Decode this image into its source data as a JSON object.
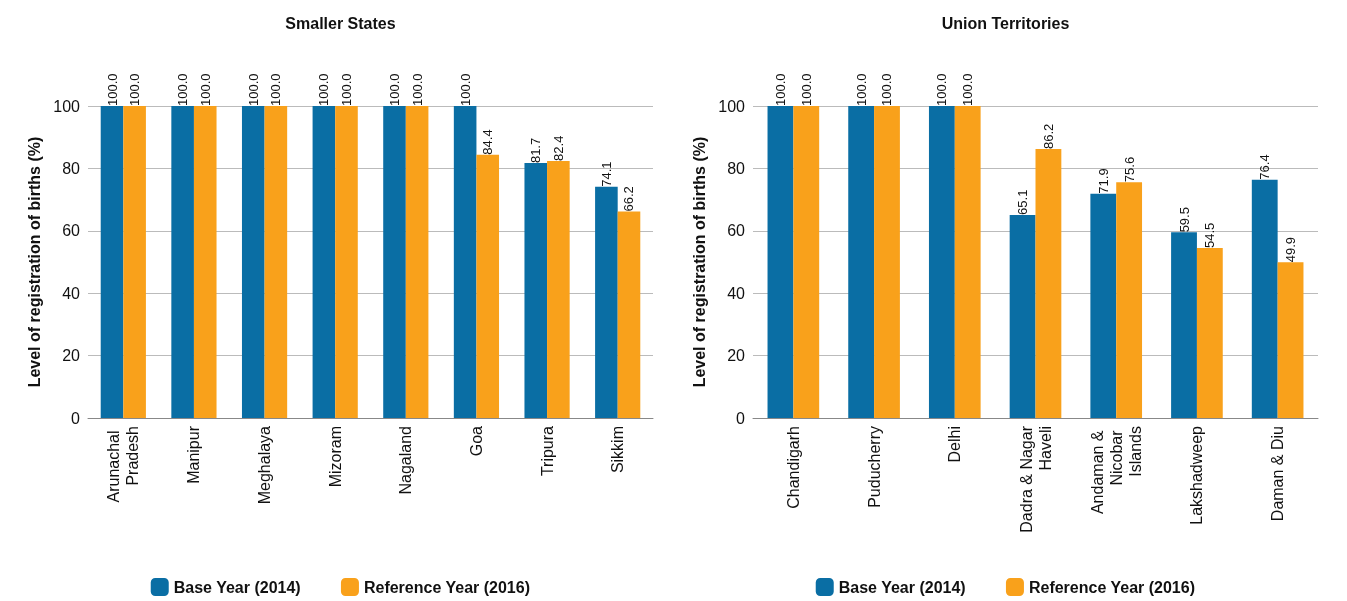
{
  "chart_data": [
    {
      "type": "bar",
      "title": "Smaller States",
      "ylabel": "Level of registration of births (%)",
      "categories": [
        "Arunachal Pradesh",
        "Manipur",
        "Meghalaya",
        "Mizoram",
        "Nagaland",
        "Goa",
        "Tripura",
        "Sikkim"
      ],
      "series": [
        {
          "name": "Base Year (2014)",
          "color": "#0a6ea4",
          "values": [
            100,
            100,
            100,
            100,
            100,
            100,
            81.7,
            74.1
          ],
          "value_labels": [
            "100.0",
            "100.0",
            "100.0",
            "100.0",
            "100.0",
            "100.0",
            "81.7",
            "74.1"
          ]
        },
        {
          "name": "Reference Year (2016)",
          "color": "#f9a11b",
          "values": [
            100,
            100,
            100,
            100,
            100,
            84.4,
            82.4,
            66.2
          ],
          "value_labels": [
            "100.0",
            "100.0",
            "100.0",
            "100.0",
            "100.0",
            "84.4",
            "82.4",
            "66.2"
          ]
        }
      ],
      "ylim": [
        0,
        100
      ],
      "yticks": [
        0,
        20,
        40,
        60,
        80,
        100
      ],
      "grid": "y",
      "legend": "bottom"
    },
    {
      "type": "bar",
      "title": "Union Territories",
      "ylabel": "Level of registration of births (%)",
      "categories": [
        "Chandigarh",
        "Puducherry",
        "Delhi",
        "Dadra & Nagar Haveli",
        "Andaman & Nicobar Islands",
        "Lakshadweep",
        "Daman & Diu"
      ],
      "series": [
        {
          "name": "Base Year (2014)",
          "color": "#0a6ea4",
          "values": [
            100,
            100,
            100,
            65.1,
            71.9,
            59.5,
            76.4
          ],
          "value_labels": [
            "100.0",
            "100.0",
            "100.0",
            "65.1",
            "71.9",
            "59.5",
            "76.4"
          ]
        },
        {
          "name": "Reference Year (2016)",
          "color": "#f9a11b",
          "values": [
            100,
            100,
            100,
            86.2,
            75.6,
            54.5,
            49.9
          ],
          "value_labels": [
            "100.0",
            "100.0",
            "100.0",
            "86.2",
            "75.6",
            "54.5",
            "49.9"
          ]
        }
      ],
      "ylim": [
        0,
        100
      ],
      "yticks": [
        0,
        20,
        40,
        60,
        80,
        100
      ],
      "grid": "y",
      "legend": "bottom"
    }
  ]
}
